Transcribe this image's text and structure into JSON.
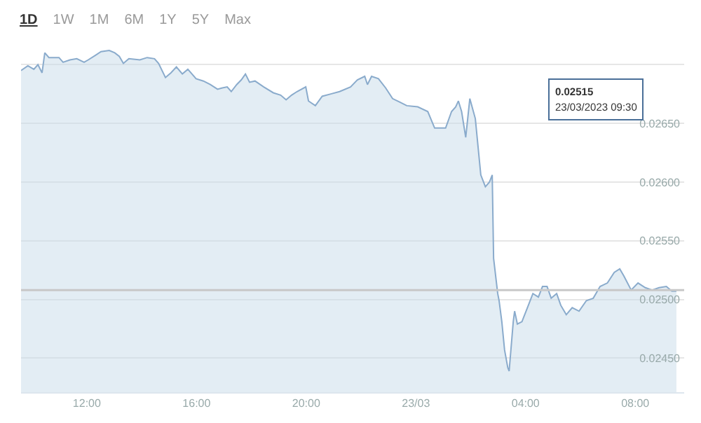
{
  "chart_data": {
    "type": "area",
    "color": "#8aabcc",
    "x": [
      "2023-03-22T09:36",
      "2023-03-22T09:51",
      "2023-03-22T10:04",
      "2023-03-22T10:13",
      "2023-03-22T10:22",
      "2023-03-22T10:28",
      "2023-03-22T10:37",
      "2023-03-22T10:59",
      "2023-03-22T11:08",
      "2023-03-22T11:23",
      "2023-03-22T11:38",
      "2023-03-22T11:54",
      "2023-03-22T12:03",
      "2023-03-22T12:19",
      "2023-03-22T12:31",
      "2023-03-22T12:49",
      "2023-03-22T13:01",
      "2023-03-22T13:11",
      "2023-03-22T13:20",
      "2023-03-22T13:32",
      "2023-03-22T13:56",
      "2023-03-22T14:12",
      "2023-03-22T14:28",
      "2023-03-22T14:37",
      "2023-03-22T14:52",
      "2023-03-22T15:04",
      "2023-03-22T15:16",
      "2023-03-22T15:29",
      "2023-03-22T15:41",
      "2023-03-22T15:50",
      "2023-03-22T15:59",
      "2023-03-22T16:15",
      "2023-03-22T16:30",
      "2023-03-22T16:46",
      "2023-03-22T16:55",
      "2023-03-22T17:07",
      "2023-03-22T17:16",
      "2023-03-22T17:28",
      "2023-03-22T17:38",
      "2023-03-22T17:47",
      "2023-03-22T17:56",
      "2023-03-22T18:08",
      "2023-03-22T18:27",
      "2023-03-22T18:48",
      "2023-03-22T19:04",
      "2023-03-22T19:16",
      "2023-03-22T19:28",
      "2023-03-22T19:40",
      "2023-03-22T19:59",
      "2023-03-22T20:05",
      "2023-03-22T20:20",
      "2023-03-22T20:35",
      "2023-03-22T20:54",
      "2023-03-22T21:13",
      "2023-03-22T21:37",
      "2023-03-22T21:52",
      "2023-03-22T22:08",
      "2023-03-22T22:14",
      "2023-03-22T22:23",
      "2023-03-22T22:38",
      "2023-03-22T22:54",
      "2023-03-22T23:09",
      "2023-03-22T23:25",
      "2023-03-22T23:40",
      "2023-03-23T00:04",
      "2023-03-23T00:26",
      "2023-03-23T00:41",
      "2023-03-23T01:05",
      "2023-03-23T01:18",
      "2023-03-23T01:27",
      "2023-03-23T01:33",
      "2023-03-23T01:40",
      "2023-03-23T01:49",
      "2023-03-23T01:58",
      "2023-03-23T02:10",
      "2023-03-23T02:22",
      "2023-03-23T02:32",
      "2023-03-23T02:41",
      "2023-03-23T02:47",
      "2023-03-23T02:50",
      "2023-03-23T02:59",
      "2023-03-23T03:02",
      "2023-03-23T03:08",
      "2023-03-23T03:14",
      "2023-03-23T03:21",
      "2023-03-23T03:24",
      "2023-03-23T03:33",
      "2023-03-23T03:36",
      "2023-03-23T03:42",
      "2023-03-23T03:52",
      "2023-03-23T04:04",
      "2023-03-23T04:16",
      "2023-03-23T04:28",
      "2023-03-23T04:37",
      "2023-03-23T04:47",
      "2023-03-23T04:56",
      "2023-03-23T05:08",
      "2023-03-23T05:17",
      "2023-03-23T05:29",
      "2023-03-23T05:42",
      "2023-03-23T05:57",
      "2023-03-23T06:13",
      "2023-03-23T06:28",
      "2023-03-23T06:43",
      "2023-03-23T06:59",
      "2023-03-23T07:14",
      "2023-03-23T07:26",
      "2023-03-23T07:35",
      "2023-03-23T07:51",
      "2023-03-23T08:06",
      "2023-03-23T08:22",
      "2023-03-23T08:37",
      "2023-03-23T08:52",
      "2023-03-23T09:08",
      "2023-03-23T09:20",
      "2023-03-23T09:30"
    ],
    "values": [
      0.02695,
      0.02699,
      0.02696,
      0.027,
      0.02693,
      0.0271,
      0.02706,
      0.02706,
      0.02702,
      0.02704,
      0.02705,
      0.02702,
      0.02704,
      0.02708,
      0.02711,
      0.02712,
      0.0271,
      0.02707,
      0.02701,
      0.02705,
      0.02704,
      0.02706,
      0.02705,
      0.02701,
      0.02689,
      0.02693,
      0.02698,
      0.02692,
      0.02696,
      0.02692,
      0.02688,
      0.02686,
      0.02683,
      0.02679,
      0.0268,
      0.02681,
      0.02677,
      0.02683,
      0.02687,
      0.02692,
      0.02685,
      0.02686,
      0.02681,
      0.02676,
      0.02674,
      0.0267,
      0.02674,
      0.02677,
      0.02681,
      0.02669,
      0.02665,
      0.02673,
      0.02675,
      0.02677,
      0.02681,
      0.02687,
      0.0269,
      0.02683,
      0.0269,
      0.02688,
      0.0268,
      0.02671,
      0.02668,
      0.02665,
      0.02664,
      0.0266,
      0.02646,
      0.02646,
      0.0266,
      0.02664,
      0.02669,
      0.0266,
      0.02638,
      0.02671,
      0.02654,
      0.02606,
      0.02596,
      0.026,
      0.02606,
      0.02535,
      0.02505,
      0.02499,
      0.02481,
      0.02457,
      0.02442,
      0.02439,
      0.02481,
      0.0249,
      0.02479,
      0.02481,
      0.02493,
      0.02505,
      0.02502,
      0.02511,
      0.02511,
      0.02501,
      0.02505,
      0.02495,
      0.02487,
      0.02493,
      0.0249,
      0.02499,
      0.02501,
      0.02511,
      0.02514,
      0.02523,
      0.02526,
      0.0252,
      0.02508,
      0.02514,
      0.0251,
      0.02508,
      0.0251,
      0.02511,
      0.02507,
      0.02507
    ],
    "xlim": [
      "2023-03-22T09:36",
      "2023-03-23T09:47"
    ],
    "xticks": [
      {
        "value": "2023-03-22T12:00",
        "label": "12:00"
      },
      {
        "value": "2023-03-22T16:00",
        "label": "16:00"
      },
      {
        "value": "2023-03-22T20:00",
        "label": "20:00"
      },
      {
        "value": "2023-03-23T00:00",
        "label": "23/03"
      },
      {
        "value": "2023-03-23T04:00",
        "label": "04:00"
      },
      {
        "value": "2023-03-23T08:00",
        "label": "08:00"
      }
    ],
    "ylim": [
      0.02421,
      0.02755
    ],
    "yticks": [
      {
        "value": 0.0245,
        "label": "0.02450"
      },
      {
        "value": 0.025,
        "label": "0.02500"
      },
      {
        "value": 0.0255,
        "label": "0.02550"
      },
      {
        "value": 0.026,
        "label": "0.02600"
      },
      {
        "value": 0.0265,
        "label": "0.02650"
      },
      {
        "value": 0.027,
        "label": null
      }
    ],
    "grid": "y",
    "legend": false,
    "marker": "none",
    "line_style": "solid",
    "ref_lines": [
      {
        "axis": "y",
        "value": 0.02508,
        "color": "#c8c8c8"
      }
    ],
    "annotations": [
      "1D",
      "1W",
      "1M",
      "6M",
      "1Y",
      "5Y",
      "Max",
      "0.02515\n23/03/2023 09:30"
    ]
  }
}
